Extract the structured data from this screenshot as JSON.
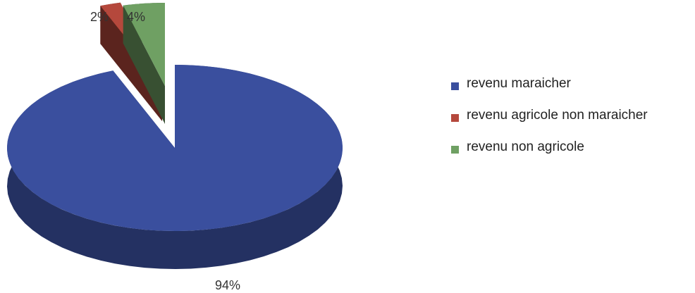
{
  "chart_data": {
    "type": "pie",
    "style": "3d",
    "legend_position": "right",
    "categories": [
      "revenu maraicher",
      "revenu agricole non maraicher",
      "revenu non agricole"
    ],
    "values": [
      94,
      2,
      4
    ],
    "data_labels": [
      "94%",
      "2%",
      "4%"
    ],
    "colors": [
      "#3a4f9e",
      "#b5483c",
      "#6fa063"
    ],
    "title": ""
  }
}
